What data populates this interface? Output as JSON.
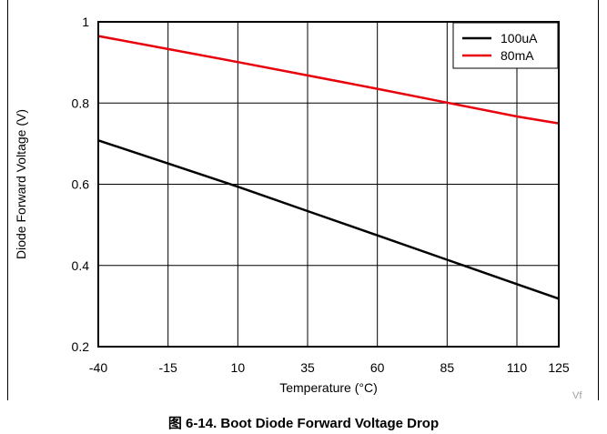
{
  "caption": "图 6-14. Boot Diode Forward Voltage Drop",
  "watermark": "Vf",
  "chart_data": {
    "type": "line",
    "xlabel": "Temperature (°C)",
    "ylabel": "Diode Forward Voltage (V)",
    "xlim": [
      -40,
      125
    ],
    "ylim": [
      0.2,
      1.0
    ],
    "x_ticks": [
      -40,
      -15,
      10,
      35,
      60,
      85,
      110,
      125
    ],
    "y_ticks": [
      0.2,
      0.4,
      0.6,
      0.8,
      1.0
    ],
    "y_tick_labels": [
      "0.2",
      "0.4",
      "0.6",
      "0.8",
      "1"
    ],
    "grid": true,
    "legend_position": "top-right",
    "series": [
      {
        "name": "100uA",
        "color": "#000000",
        "x": [
          -40,
          -15,
          10,
          35,
          60,
          85,
          110,
          125
        ],
        "y": [
          0.708,
          0.651,
          0.594,
          0.534,
          0.474,
          0.414,
          0.354,
          0.318
        ]
      },
      {
        "name": "80mA",
        "color": "#e8000b",
        "x": [
          -40,
          -15,
          10,
          35,
          60,
          85,
          110,
          125
        ],
        "y": [
          0.965,
          0.933,
          0.901,
          0.868,
          0.835,
          0.801,
          0.767,
          0.75
        ]
      }
    ]
  }
}
